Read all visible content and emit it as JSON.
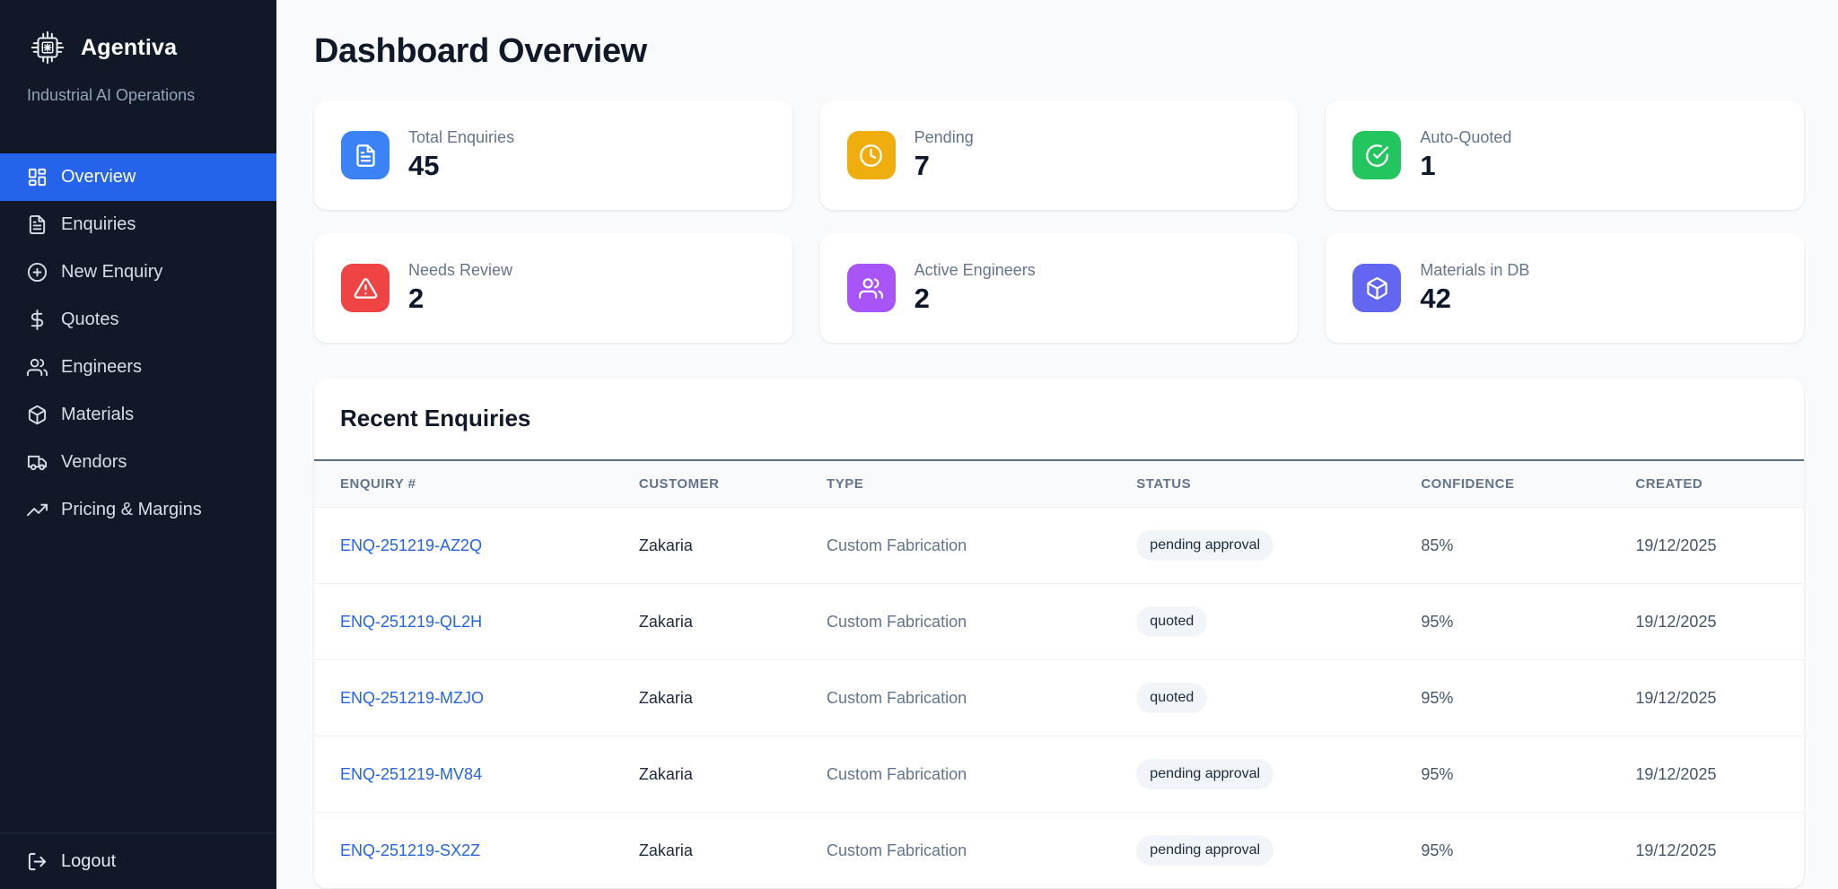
{
  "colors": {
    "accent": "#2563eb",
    "sidebar_bg": "#111827",
    "page_bg": "#f8fafc",
    "link": "#2563eb"
  },
  "sidebar": {
    "brand": {
      "name": "Agentiva",
      "tagline": "Industrial AI Operations",
      "logo_icon": "chip-icon"
    },
    "nav": [
      {
        "label": "Overview",
        "icon": "layout-dashboard-icon",
        "active": true
      },
      {
        "label": "Enquiries",
        "icon": "file-text-icon",
        "active": false
      },
      {
        "label": "New Enquiry",
        "icon": "plus-circle-icon",
        "active": false
      },
      {
        "label": "Quotes",
        "icon": "dollar-icon",
        "active": false
      },
      {
        "label": "Engineers",
        "icon": "users-icon",
        "active": false
      },
      {
        "label": "Materials",
        "icon": "package-icon",
        "active": false
      },
      {
        "label": "Vendors",
        "icon": "truck-icon",
        "active": false
      },
      {
        "label": "Pricing & Margins",
        "icon": "trending-up-icon",
        "active": false
      }
    ],
    "logout_label": "Logout",
    "logout_icon": "logout-icon"
  },
  "header": {
    "title": "Dashboard Overview"
  },
  "stats": [
    {
      "label": "Total Enquiries",
      "value": "45",
      "icon": "file-text-icon",
      "color": "#3b82f6"
    },
    {
      "label": "Pending",
      "value": "7",
      "icon": "clock-icon",
      "color": "#f0ad0e"
    },
    {
      "label": "Auto-Quoted",
      "value": "1",
      "icon": "check-circle-icon",
      "color": "#22c55e"
    },
    {
      "label": "Needs Review",
      "value": "2",
      "icon": "alert-triangle-icon",
      "color": "#ef4444"
    },
    {
      "label": "Active Engineers",
      "value": "2",
      "icon": "users-icon",
      "color": "#a855f7"
    },
    {
      "label": "Materials in DB",
      "value": "42",
      "icon": "package-icon",
      "color": "#6366f1"
    }
  ],
  "recent_enquiries": {
    "title": "Recent Enquiries",
    "columns": [
      "ENQUIRY #",
      "CUSTOMER",
      "TYPE",
      "STATUS",
      "CONFIDENCE",
      "CREATED"
    ],
    "rows": [
      {
        "enquiry": "ENQ-251219-AZ2Q",
        "customer": "Zakaria",
        "type": "Custom Fabrication",
        "status": "pending approval",
        "confidence": "85%",
        "created": "19/12/2025"
      },
      {
        "enquiry": "ENQ-251219-QL2H",
        "customer": "Zakaria",
        "type": "Custom Fabrication",
        "status": "quoted",
        "confidence": "95%",
        "created": "19/12/2025"
      },
      {
        "enquiry": "ENQ-251219-MZJO",
        "customer": "Zakaria",
        "type": "Custom Fabrication",
        "status": "quoted",
        "confidence": "95%",
        "created": "19/12/2025"
      },
      {
        "enquiry": "ENQ-251219-MV84",
        "customer": "Zakaria",
        "type": "Custom Fabrication",
        "status": "pending approval",
        "confidence": "95%",
        "created": "19/12/2025"
      },
      {
        "enquiry": "ENQ-251219-SX2Z",
        "customer": "Zakaria",
        "type": "Custom Fabrication",
        "status": "pending approval",
        "confidence": "95%",
        "created": "19/12/2025"
      }
    ]
  }
}
